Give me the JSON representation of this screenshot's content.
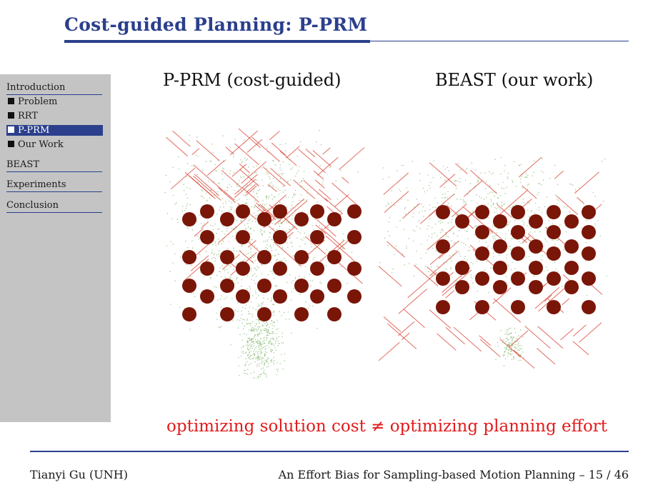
{
  "slide": {
    "title": "Cost-guided Planning: P-PRM"
  },
  "sidebar": {
    "sections": [
      {
        "label": "Introduction"
      },
      {
        "label": "BEAST"
      },
      {
        "label": "Experiments"
      },
      {
        "label": "Conclusion"
      }
    ],
    "subitems": [
      {
        "label": "Problem",
        "active": false
      },
      {
        "label": "RRT",
        "active": false
      },
      {
        "label": "P-PRM",
        "active": true
      },
      {
        "label": "Our Work",
        "active": false
      }
    ]
  },
  "panels": {
    "left_title": "P-PRM (cost-guided)",
    "right_title": "BEAST (our work)"
  },
  "caption": "optimizing solution cost ≠ optimizing planning effort",
  "footer": {
    "author": "Tianyi Gu (UNH)",
    "talk": "An Effort Bias for Sampling-based Motion Planning – 15 / 46"
  },
  "colors": {
    "accent": "#2b3f8c",
    "obstacle": "#7a1608",
    "tree": "#d63a2a",
    "samples": "#6aa84f",
    "caption": "#e21b1b"
  }
}
